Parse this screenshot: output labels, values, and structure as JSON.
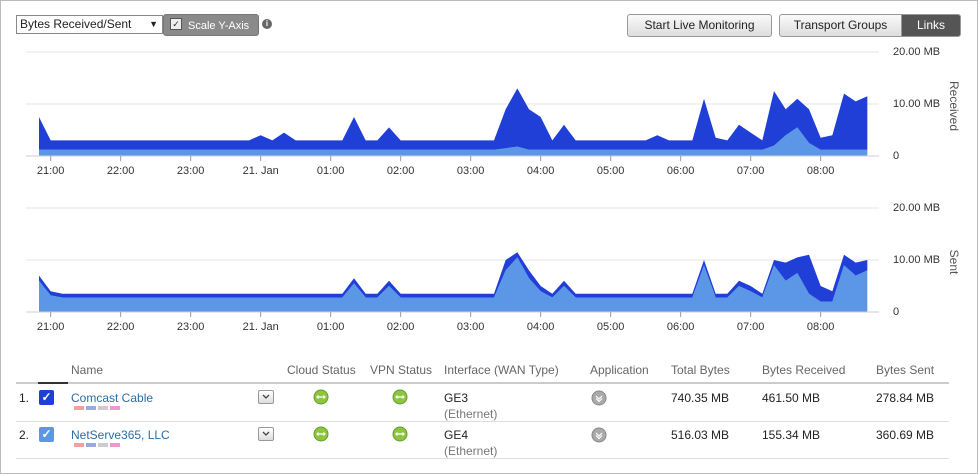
{
  "controls": {
    "metric_select": "Bytes Received/Sent",
    "scale_toggle": "Scale Y-Axis",
    "live_button": "Start Live Monitoring",
    "tabs": [
      "Transport Groups",
      "Links"
    ]
  },
  "chart_data": [
    {
      "type": "area",
      "ylabel": "Received",
      "stacked": true,
      "grid": true,
      "categories": [
        null,
        "21:00",
        null,
        null,
        null,
        null,
        null,
        "22:00",
        null,
        null,
        null,
        null,
        null,
        "23:00",
        null,
        null,
        null,
        null,
        null,
        "21. Jan",
        null,
        null,
        null,
        null,
        null,
        "01:00",
        null,
        null,
        null,
        null,
        null,
        "02:00",
        null,
        null,
        null,
        null,
        null,
        "03:00",
        null,
        null,
        null,
        null,
        null,
        "04:00",
        null,
        null,
        null,
        null,
        null,
        "05:00",
        null,
        null,
        null,
        null,
        null,
        "06:00",
        null,
        null,
        null,
        null,
        null,
        "07:00",
        null,
        null,
        null,
        null,
        null,
        "08:00",
        null,
        null,
        null,
        null
      ],
      "series": [
        {
          "color": "#5b97e6",
          "values": [
            1.2,
            1.2,
            1.2,
            1.2,
            1.2,
            1.2,
            1.2,
            1.2,
            1.2,
            1.2,
            1.2,
            1.2,
            1.2,
            1.2,
            1.2,
            1.2,
            1.2,
            1.2,
            1.2,
            1.2,
            1.2,
            1.2,
            1.2,
            1.2,
            1.2,
            1.2,
            1.2,
            1.2,
            1.2,
            1.2,
            1.2,
            1.2,
            1.2,
            1.2,
            1.2,
            1.2,
            1.2,
            1.2,
            1.2,
            1.2,
            1.5,
            1.8,
            1.2,
            1.2,
            1.2,
            1.2,
            1.2,
            1.2,
            1.2,
            1.2,
            1.2,
            1.2,
            1.2,
            1.2,
            1.2,
            1.2,
            1.2,
            1.2,
            1.2,
            1.2,
            1.2,
            1.2,
            1.2,
            2,
            4,
            5.5,
            2.5,
            1.2,
            1.2,
            1.2,
            1.2,
            1.2
          ]
        },
        {
          "color": "#1f3fd6",
          "values": [
            6.3,
            1.8,
            1.8,
            1.8,
            1.8,
            1.8,
            1.8,
            1.8,
            1.8,
            1.8,
            1.8,
            1.8,
            1.8,
            1.8,
            1.8,
            1.8,
            1.8,
            1.8,
            1.8,
            2.8,
            1.8,
            3.3,
            1.8,
            1.8,
            1.8,
            1.8,
            1.8,
            6.3,
            1.8,
            1.8,
            4.3,
            1.8,
            1.8,
            1.8,
            1.8,
            1.8,
            1.8,
            1.8,
            1.8,
            1.8,
            7.5,
            11.2,
            7.8,
            6.3,
            1.8,
            4.8,
            1.8,
            1.8,
            1.8,
            1.8,
            1.8,
            1.8,
            1.8,
            2.8,
            1.8,
            1.8,
            1.8,
            9.8,
            2.3,
            1.8,
            4.8,
            3.3,
            1.8,
            10.5,
            5,
            5.5,
            6.5,
            2.3,
            2.8,
            10.8,
            9.3,
            10.3
          ]
        }
      ],
      "ylim": [
        0,
        20
      ],
      "yticks": [
        0,
        {
          "value": 10,
          "label": "10.00 MB"
        },
        {
          "value": 20,
          "label": "20.00 MB"
        }
      ]
    },
    {
      "type": "area",
      "ylabel": "Sent",
      "stacked": true,
      "grid": true,
      "categories": [
        null,
        "21:00",
        null,
        null,
        null,
        null,
        null,
        "22:00",
        null,
        null,
        null,
        null,
        null,
        "23:00",
        null,
        null,
        null,
        null,
        null,
        "21. Jan",
        null,
        null,
        null,
        null,
        null,
        "01:00",
        null,
        null,
        null,
        null,
        null,
        "02:00",
        null,
        null,
        null,
        null,
        null,
        "03:00",
        null,
        null,
        null,
        null,
        null,
        "04:00",
        null,
        null,
        null,
        null,
        null,
        "05:00",
        null,
        null,
        null,
        null,
        null,
        "06:00",
        null,
        null,
        null,
        null,
        null,
        "07:00",
        null,
        null,
        null,
        null,
        null,
        "08:00",
        null,
        null,
        null,
        null
      ],
      "series": [
        {
          "color": "#5b97e6",
          "values": [
            6,
            3.2,
            2.8,
            2.8,
            2.8,
            2.8,
            2.8,
            2.8,
            2.8,
            2.8,
            2.8,
            2.8,
            2.8,
            2.8,
            2.8,
            2.8,
            2.8,
            2.8,
            2.8,
            2.8,
            2.8,
            2.8,
            2.8,
            2.8,
            2.8,
            2.8,
            2.8,
            5.5,
            2.8,
            2.8,
            5,
            2.8,
            2.8,
            2.8,
            2.8,
            2.8,
            2.8,
            2.8,
            2.8,
            2.8,
            8,
            10.5,
            6.5,
            4,
            2.8,
            5,
            2.8,
            2.8,
            2.8,
            2.8,
            2.8,
            2.8,
            2.8,
            2.8,
            2.8,
            2.8,
            2.8,
            9,
            2.8,
            2.8,
            5,
            4,
            2.8,
            9,
            6,
            7.5,
            3.5,
            2,
            2,
            9,
            7,
            8
          ]
        },
        {
          "color": "#1f3fd6",
          "values": [
            1,
            0.8,
            0.7,
            0.7,
            0.7,
            0.7,
            0.7,
            0.7,
            0.7,
            0.7,
            0.7,
            0.7,
            0.7,
            0.7,
            0.7,
            0.7,
            0.7,
            0.7,
            0.7,
            0.7,
            0.7,
            0.7,
            0.7,
            0.7,
            0.7,
            0.7,
            0.7,
            1,
            0.7,
            0.7,
            1,
            0.7,
            0.7,
            0.7,
            0.7,
            0.7,
            0.7,
            0.7,
            0.7,
            0.7,
            2,
            1,
            1.5,
            1,
            0.7,
            1,
            0.7,
            0.7,
            0.7,
            0.7,
            0.7,
            0.7,
            0.7,
            0.7,
            0.7,
            0.7,
            0.7,
            1,
            0.7,
            0.7,
            1,
            1,
            0.7,
            1,
            3.5,
            3,
            7.5,
            3,
            2,
            2,
            2.5,
            2
          ]
        }
      ],
      "ylim": [
        0,
        20
      ],
      "yticks": [
        0,
        {
          "value": 10,
          "label": "10.00 MB"
        },
        {
          "value": 20,
          "label": "20.00 MB"
        }
      ]
    }
  ],
  "table": {
    "headers": [
      "Name",
      "Cloud Status",
      "VPN Status",
      "Interface (WAN Type)",
      "Application",
      "Total Bytes",
      "Bytes Received",
      "Bytes Sent"
    ],
    "rows": [
      {
        "index": "1.",
        "name": "Comcast Cable",
        "interface": "GE3",
        "wan_type": "(Ethernet)",
        "total": "740.35 MB",
        "received": "461.50 MB",
        "sent": "278.84 MB"
      },
      {
        "index": "2.",
        "name": "NetServe365, LLC",
        "interface": "GE4",
        "wan_type": "(Ethernet)",
        "total": "516.03 MB",
        "received": "155.34 MB",
        "sent": "360.69 MB"
      }
    ]
  }
}
